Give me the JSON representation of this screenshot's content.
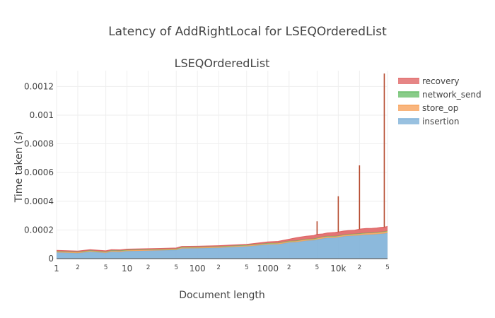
{
  "chart_data": {
    "type": "area",
    "stacked": true,
    "title": "Latency of AddRightLocal for LSEQOrderedList",
    "subtitle": "LSEQOrderedList",
    "xlabel": "Document length",
    "ylabel": "Time taken (s)",
    "x_scale": "log",
    "xlim": [
      1,
      50000
    ],
    "ylim": [
      0,
      0.00131
    ],
    "grid": true,
    "legend_position": "top-right",
    "y_ticks": [
      {
        "value": 0,
        "label": "0"
      },
      {
        "value": 0.0002,
        "label": "0.0002"
      },
      {
        "value": 0.0004,
        "label": "0.0004"
      },
      {
        "value": 0.0006,
        "label": "0.0006"
      },
      {
        "value": 0.0008,
        "label": "0.0008"
      },
      {
        "value": 0.001,
        "label": "0.001"
      },
      {
        "value": 0.0012,
        "label": "0.0012"
      }
    ],
    "x_ticks_major": [
      {
        "value": 1,
        "label": "1"
      },
      {
        "value": 10,
        "label": "10"
      },
      {
        "value": 100,
        "label": "100"
      },
      {
        "value": 1000,
        "label": "1000"
      },
      {
        "value": 10000,
        "label": "10k"
      }
    ],
    "x_ticks_minor": [
      {
        "value": 2,
        "label": "2"
      },
      {
        "value": 5,
        "label": "5"
      },
      {
        "value": 20,
        "label": "2"
      },
      {
        "value": 50,
        "label": "5"
      },
      {
        "value": 200,
        "label": "2"
      },
      {
        "value": 500,
        "label": "5"
      },
      {
        "value": 2000,
        "label": "2"
      },
      {
        "value": 5000,
        "label": "5"
      },
      {
        "value": 20000,
        "label": "2"
      },
      {
        "value": 50000,
        "label": "5"
      }
    ],
    "x": [
      1,
      2,
      3,
      5,
      6,
      8,
      10,
      20,
      30,
      50,
      60,
      100,
      200,
      300,
      500,
      1000,
      1400,
      2000,
      2500,
      3000,
      3500,
      4500,
      5000,
      6000,
      7000,
      9000,
      10000,
      12000,
      14000,
      17000,
      20000,
      22000,
      25000,
      30000,
      35000,
      40000,
      45000,
      48000,
      50000
    ],
    "series": [
      {
        "name": "insertion",
        "color": "#7fb1d8",
        "values": [
          4.3e-05,
          3.8e-05,
          4.8e-05,
          4e-05,
          4.8e-05,
          4.7e-05,
          5.2e-05,
          5.5e-05,
          5.7e-05,
          6e-05,
          7.1e-05,
          7.2e-05,
          7.6e-05,
          8e-05,
          8.5e-05,
          9.8e-05,
          0.0001,
          0.000113,
          0.000115,
          0.00012,
          0.000125,
          0.000128,
          0.000133,
          0.00014,
          0.000145,
          0.000145,
          0.000148,
          0.000155,
          0.000158,
          0.00016,
          0.000162,
          0.000165,
          0.000167,
          0.000168,
          0.00017,
          0.000173,
          0.000175,
          0.000178,
          0.00018
        ]
      },
      {
        "name": "store_op",
        "color": "#f7a35c",
        "values": [
          7e-06,
          7e-06,
          7e-06,
          7e-06,
          7e-06,
          7e-06,
          7e-06,
          7e-06,
          7e-06,
          7e-06,
          7e-06,
          7e-06,
          7e-06,
          7e-06,
          7e-06,
          8e-06,
          8e-06,
          8e-06,
          8e-06,
          9e-06,
          9e-06,
          9e-06,
          9e-06,
          1e-05,
          1e-05,
          1e-05,
          1e-05,
          1e-05,
          1e-05,
          1.1e-05,
          1.1e-05,
          1.1e-05,
          1.1e-05,
          1.1e-05,
          1.1e-05,
          1.2e-05,
          1.2e-05,
          1.2e-05,
          1.2e-05
        ]
      },
      {
        "name": "network_send",
        "color": "#6cbf6c",
        "values": [
          2e-06,
          2e-06,
          2e-06,
          2e-06,
          2e-06,
          2e-06,
          2e-06,
          2e-06,
          2e-06,
          2e-06,
          2e-06,
          2e-06,
          2e-06,
          2e-06,
          2e-06,
          2e-06,
          2e-06,
          2e-06,
          2e-06,
          2e-06,
          2e-06,
          2e-06,
          2e-06,
          2e-06,
          2e-06,
          2e-06,
          2e-06,
          2e-06,
          2e-06,
          2e-06,
          2e-06,
          2e-06,
          2e-06,
          2e-06,
          2e-06,
          2e-06,
          2e-06,
          2e-06,
          2e-06
        ]
      },
      {
        "name": "recovery",
        "color": "#e06666",
        "values": [
          5e-06,
          5e-06,
          5e-06,
          5e-06,
          5e-06,
          5e-06,
          5e-06,
          5e-06,
          5e-06,
          5e-06,
          5e-06,
          5e-06,
          5e-06,
          5e-06,
          5e-06,
          8e-06,
          1e-05,
          1.2e-05,
          2e-05,
          2e-05,
          2e-05,
          2.2e-05,
          2.5e-05,
          2e-05,
          2.2e-05,
          2.5e-05,
          2.5e-05,
          2.5e-05,
          2.5e-05,
          2.5e-05,
          3e-05,
          3e-05,
          3e-05,
          3e-05,
          3e-05,
          3e-05,
          3e-05,
          3e-05,
          3e-05
        ]
      }
    ],
    "spikes": [
      {
        "x": 5000,
        "value": 0.00026
      },
      {
        "x": 10000,
        "value": 0.000435
      },
      {
        "x": 20000,
        "value": 0.00065
      },
      {
        "x": 45000,
        "value": 0.00129
      }
    ]
  }
}
